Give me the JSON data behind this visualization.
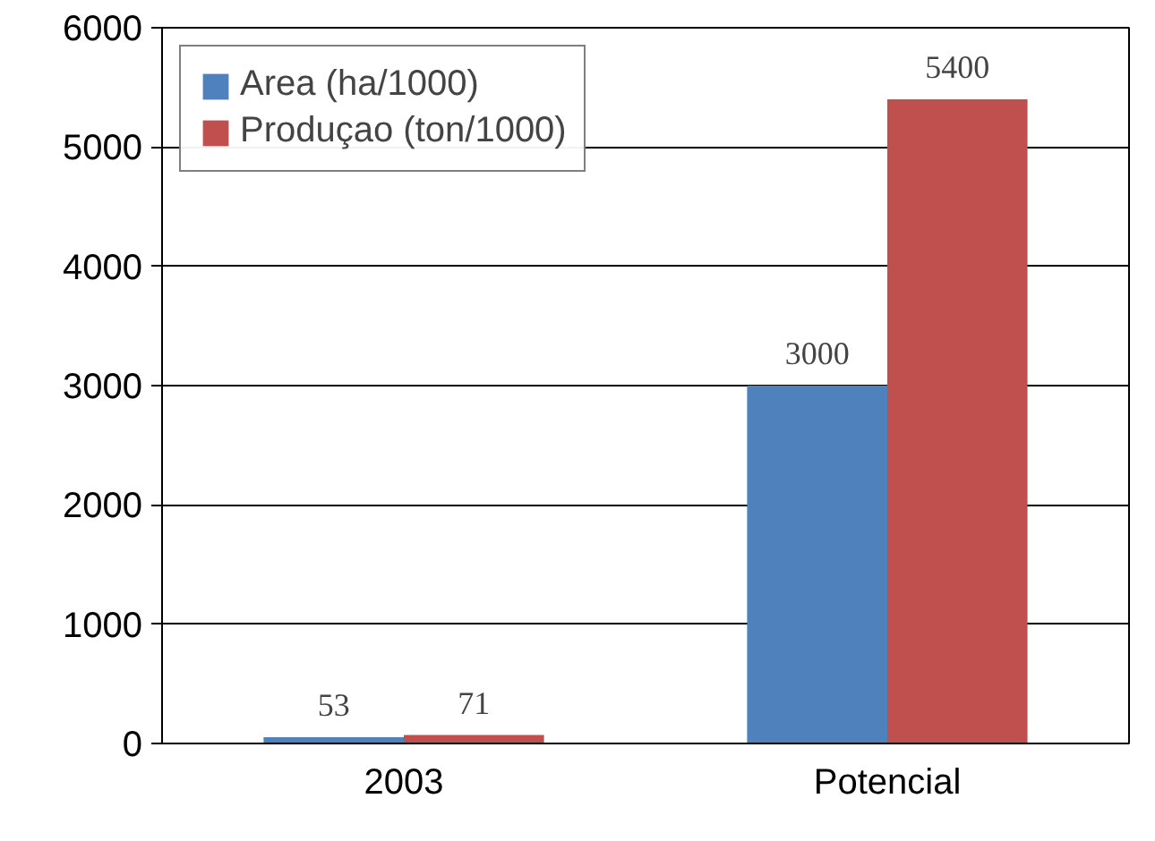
{
  "chart_data": {
    "type": "bar",
    "categories": [
      "2003",
      "Potencial"
    ],
    "series": [
      {
        "name": "Area (ha/1000)",
        "color": "#4f81bd",
        "values": [
          53,
          3000
        ]
      },
      {
        "name": "Produçao (ton/1000)",
        "color": "#c0504d",
        "values": [
          71,
          5400
        ]
      }
    ],
    "ylim": [
      0,
      6000
    ],
    "yticks": [
      0,
      1000,
      2000,
      3000,
      4000,
      5000,
      6000
    ],
    "grid": "y",
    "legend": "top left",
    "data_labels": true
  }
}
